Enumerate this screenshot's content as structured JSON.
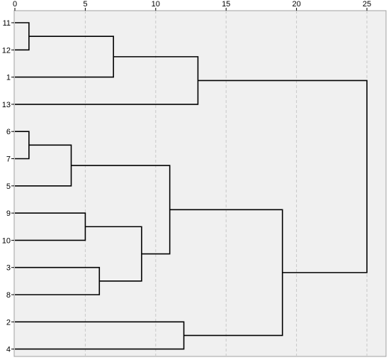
{
  "chart_data": {
    "type": "dendrogram",
    "title": "",
    "xlabel": "",
    "ylabel": "",
    "xlim": [
      0,
      25
    ],
    "x_ticks": [
      0,
      5,
      10,
      15,
      20,
      25
    ],
    "grid": true,
    "orientation": "horizontal",
    "leaf_order": [
      "11",
      "12",
      "1",
      "13",
      "6",
      "7",
      "5",
      "9",
      "10",
      "3",
      "8",
      "2",
      "4"
    ],
    "merges": [
      {
        "left": "11",
        "right": "12",
        "height": 1,
        "id": "A"
      },
      {
        "left": "A",
        "right": "1",
        "height": 7,
        "id": "B"
      },
      {
        "left": "B",
        "right": "13",
        "height": 13,
        "id": "C"
      },
      {
        "left": "6",
        "right": "7",
        "height": 1,
        "id": "D"
      },
      {
        "left": "D",
        "right": "5",
        "height": 4,
        "id": "E"
      },
      {
        "left": "9",
        "right": "10",
        "height": 5,
        "id": "F"
      },
      {
        "left": "3",
        "right": "8",
        "height": 6,
        "id": "G"
      },
      {
        "left": "F",
        "right": "G",
        "height": 9,
        "id": "H"
      },
      {
        "left": "E",
        "right": "H",
        "height": 11,
        "id": "I"
      },
      {
        "left": "2",
        "right": "4",
        "height": 12,
        "id": "J"
      },
      {
        "left": "I",
        "right": "J",
        "height": 19,
        "id": "K"
      },
      {
        "left": "C",
        "right": "K",
        "height": 25,
        "id": "L"
      }
    ],
    "colors": {
      "plot_background": "#f0f0f0",
      "line": "#000000",
      "grid": "#c8c8c8"
    }
  }
}
